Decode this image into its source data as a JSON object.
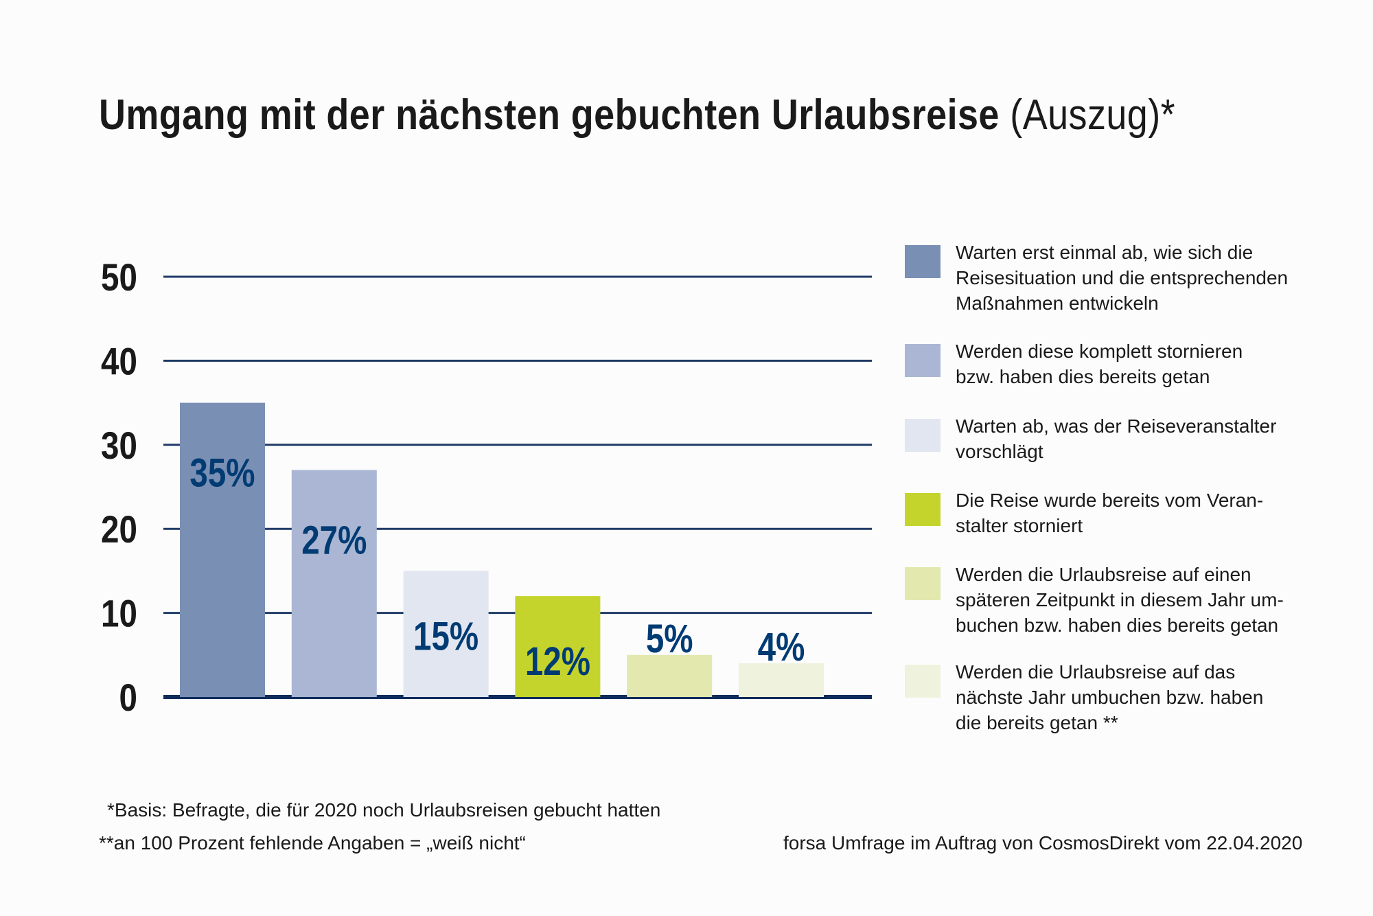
{
  "title": {
    "main": "Umgang mit der nächsten gebuchten Urlaubsreise",
    "sub": "(Auszug)*"
  },
  "chart_data": {
    "type": "bar",
    "categories": [
      "Warten erst einmal ab, wie sich die Reisesituation und die entsprechenden Maßnahmen entwickeln",
      "Werden diese komplett stornieren bzw. haben dies bereits getan",
      "Warten ab, was der Reiseveranstalter vorschlägt",
      "Die Reise wurde bereits vom Veranstalter storniert",
      "Werden die Urlaubsreise auf einen späteren Zeitpunkt in diesem Jahr umbuchen bzw. haben dies bereits getan",
      "Werden die Urlaubsreise auf das nächste Jahr umbuchen bzw. haben die bereits getan **"
    ],
    "values": [
      35,
      27,
      15,
      12,
      5,
      4
    ],
    "data_labels": [
      "35%",
      "27%",
      "15%",
      "12%",
      "5%",
      "4%"
    ],
    "colors": [
      "#7a8fb4",
      "#aab6d3",
      "#e2e6f0",
      "#c5d42c",
      "#e3e8ae",
      "#eff2dc"
    ],
    "ylim": [
      0,
      50
    ],
    "yticks": [
      "0",
      "10",
      "20",
      "30",
      "40",
      "50"
    ],
    "grid": true,
    "gridline_color": "#1f3a66",
    "legend_position": "right"
  },
  "legend": [
    {
      "text": "Warten erst einmal ab, wie sich die\nReisesituation und die entsprechenden\nMaßnahmen entwickeln",
      "color": "#7a8fb4"
    },
    {
      "text": "Werden diese komplett stornieren\nbzw. haben dies bereits getan",
      "color": "#aab6d3"
    },
    {
      "text": "Warten ab, was der Reiseveranstalter\nvorschlägt",
      "color": "#e2e6f0"
    },
    {
      "text": "Die Reise wurde bereits vom Veran-\nstalter storniert",
      "color": "#c5d42c"
    },
    {
      "text": "Werden die Urlaubsreise auf einen\nspäteren Zeitpunkt in diesem Jahr um-\nbuchen bzw. haben dies bereits getan",
      "color": "#e3e8ae"
    },
    {
      "text": "Werden die Urlaubsreise auf das\nnächste Jahr umbuchen bzw. haben\ndie bereits getan **",
      "color": "#eff2dc"
    }
  ],
  "footnotes": {
    "basis": "*Basis: Befragte, die für 2020 noch Urlaubsreisen gebucht hatten",
    "missing": "**an 100 Prozent fehlende Angaben = „weiß nicht“",
    "source": "forsa Umfrage im Auftrag von CosmosDirekt vom 22.04.2020"
  }
}
